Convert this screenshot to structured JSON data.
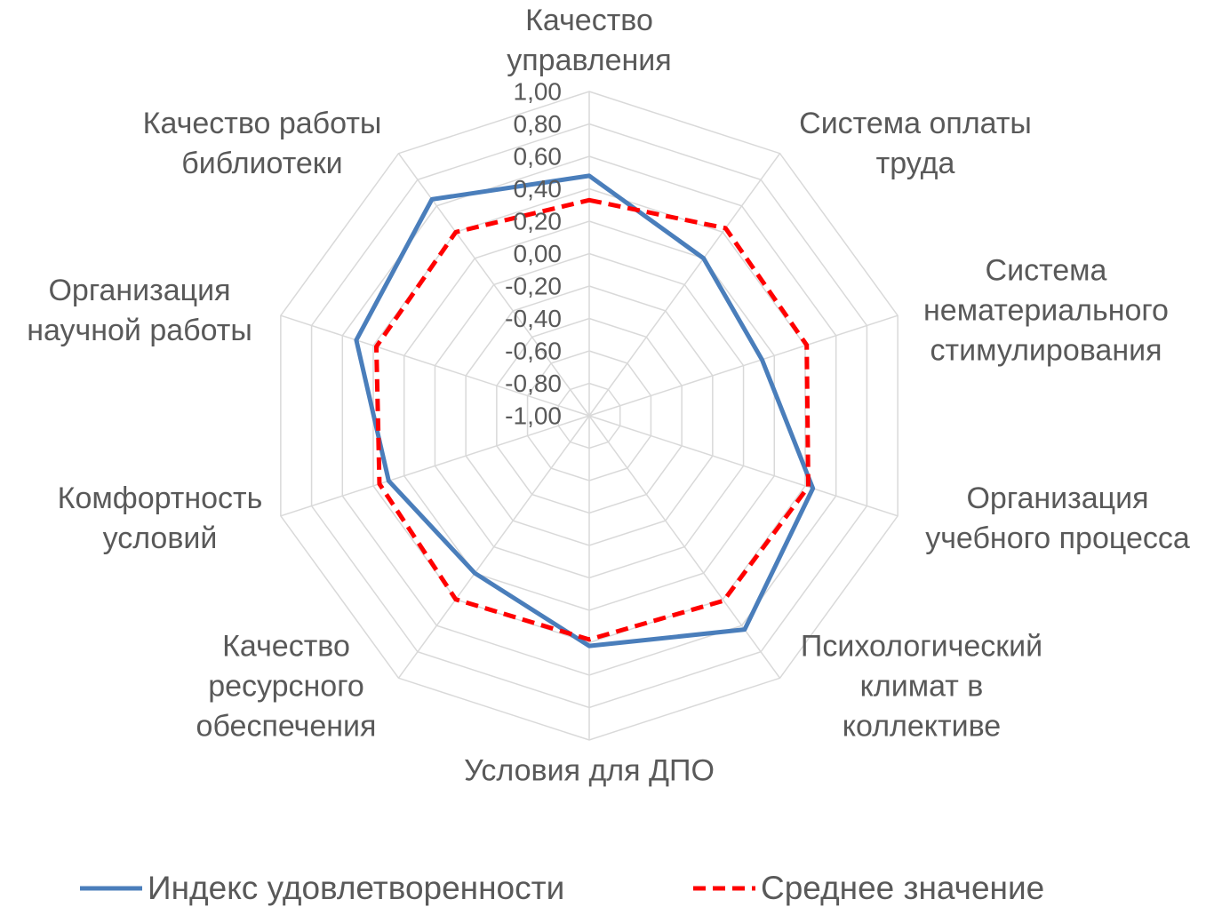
{
  "chart_data": {
    "type": "radar",
    "categories": [
      "Качество\nуправления",
      "Система оплаты\nтруда",
      "Система\nнематериального\nстимулирования",
      "Организация\nучебного процесса",
      "Психологический\nклимат в\nколлективе",
      "Условия для ДПО",
      "Качество\nресурсного\nобеспечения",
      "Комфортность\nусловий",
      "Организация\nнаучной работы",
      "Качество работы\nбиблиотеки"
    ],
    "series": [
      {
        "name": "Индекс удовлетворенности",
        "color": "#4a7ebb",
        "dash": false,
        "values": [
          0.48,
          0.2,
          0.12,
          0.45,
          0.63,
          0.42,
          0.2,
          0.3,
          0.51,
          0.65
        ]
      },
      {
        "name": "Среднее значение",
        "color": "#ff0000",
        "dash": true,
        "values": [
          0.33,
          0.43,
          0.41,
          0.42,
          0.41,
          0.38,
          0.4,
          0.36,
          0.38,
          0.4
        ]
      }
    ],
    "ylim": [
      -1,
      1
    ],
    "yticks": [
      {
        "value": -1,
        "label": "-1,00"
      },
      {
        "value": -0.8,
        "label": "-0,80"
      },
      {
        "value": -0.6,
        "label": "-0,60"
      },
      {
        "value": -0.4,
        "label": "-0,40"
      },
      {
        "value": -0.2,
        "label": "-0,20"
      },
      {
        "value": 0,
        "label": "0,00"
      },
      {
        "value": 0.2,
        "label": "0,20"
      },
      {
        "value": 0.4,
        "label": "0,40"
      },
      {
        "value": 0.6,
        "label": "0,60"
      },
      {
        "value": 0.8,
        "label": "0,80"
      },
      {
        "value": 1,
        "label": "1,00"
      }
    ],
    "grid": true,
    "legend": "bottom"
  }
}
